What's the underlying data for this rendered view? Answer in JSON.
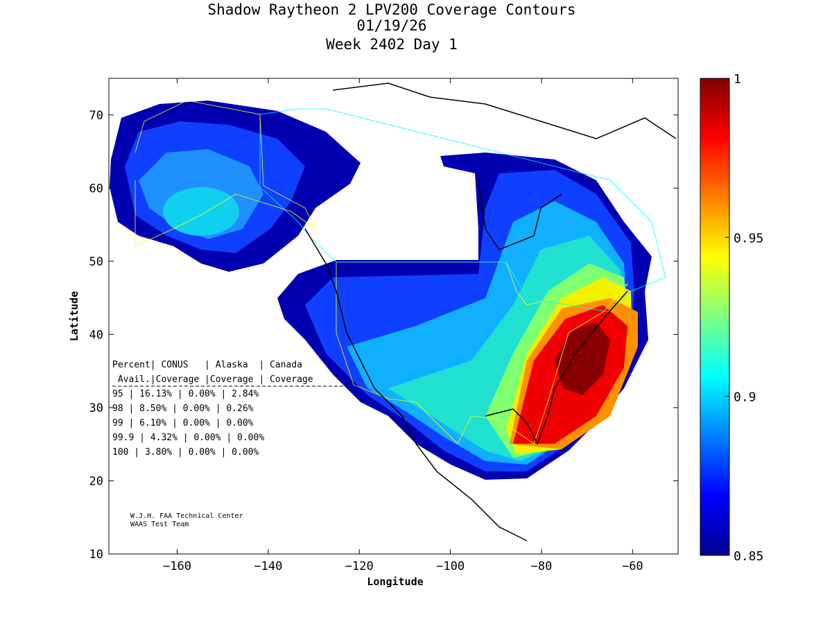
{
  "chart_data": {
    "type": "heatmap",
    "subtype": "filled contour map",
    "title_lines": [
      "Shadow Raytheon 2 LPV200 Coverage Contours",
      "01/19/26",
      "Week 2402 Day 1"
    ],
    "xlabel": "Longitude",
    "ylabel": "Latitude",
    "xlim": [
      -175,
      -50
    ],
    "ylim": [
      10,
      75
    ],
    "xticks": [
      -160,
      -140,
      -120,
      -100,
      -80,
      -60
    ],
    "yticks": [
      10,
      20,
      30,
      40,
      50,
      60,
      70
    ],
    "colorbar": {
      "range": [
        0.85,
        1
      ],
      "ticks": [
        "1",
        "0.95",
        "0.9",
        "0.85"
      ],
      "tick_values": [
        1,
        0.95,
        0.9,
        0.85
      ],
      "colormap": "jet"
    },
    "table": {
      "header1": [
        "Percent",
        "CONUS",
        "Alaska",
        "Canada"
      ],
      "header2": [
        "Avail.",
        "Coverage",
        "Coverage",
        "Coverage"
      ],
      "rows": [
        [
          "95",
          "16.13%",
          "0.00%",
          "2.84%"
        ],
        [
          "98",
          "8.50%",
          "0.00%",
          "0.26%"
        ],
        [
          "99",
          "6.10%",
          "0.00%",
          "0.00%"
        ],
        [
          "99.9",
          "4.32%",
          "0.00%",
          "0.00%"
        ],
        [
          "100",
          "3.80%",
          "0.00%",
          "0.00%"
        ]
      ]
    },
    "credits": [
      "W.J.H. FAA Technical Center",
      "WAAS Test Team"
    ]
  }
}
